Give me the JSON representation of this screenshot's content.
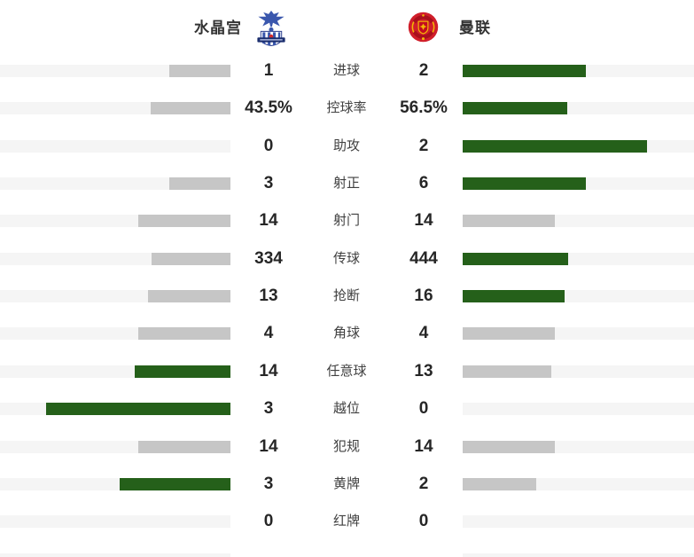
{
  "header": {
    "home_team": "水晶宫",
    "away_team": "曼联"
  },
  "colors": {
    "lead_bar": "#25601a",
    "trail_bar": "#c6c6c6",
    "track": "#f5f5f5",
    "value_text": "#262626",
    "label_text": "#404040",
    "team_text": "#333333"
  },
  "chart_data": {
    "type": "bar",
    "subtype": "horizontal-paired-comparison",
    "categories": [
      "进球",
      "控球率",
      "助攻",
      "射正",
      "射门",
      "传球",
      "抢断",
      "角球",
      "任意球",
      "越位",
      "犯规",
      "黄牌",
      "红牌"
    ],
    "series": [
      {
        "name": "水晶宫",
        "values": [
          "1",
          "43.5%",
          "0",
          "3",
          "14",
          "334",
          "13",
          "4",
          "14",
          "3",
          "14",
          "3",
          "0"
        ]
      },
      {
        "name": "曼联",
        "values": [
          "2",
          "56.5%",
          "2",
          "6",
          "14",
          "444",
          "16",
          "4",
          "13",
          "0",
          "14",
          "2",
          "0"
        ]
      }
    ],
    "legend_position": "top",
    "grid": false,
    "bar_encoding": "bar length proportional to value/(home+away), max 208px; higher value dark green, lower or tied value gray, zero value no bar"
  }
}
